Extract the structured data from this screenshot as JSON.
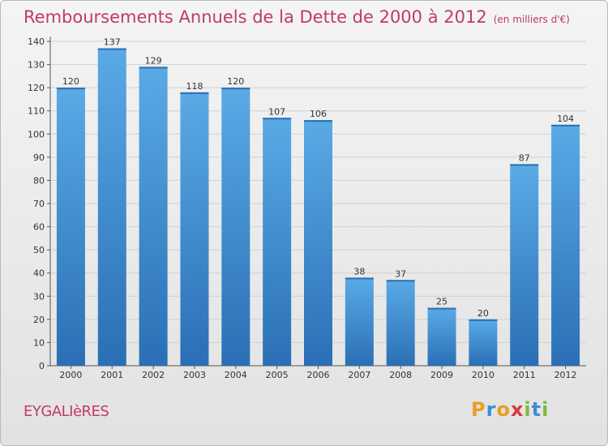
{
  "title": "Remboursements Annuels de la Dette de 2000 à 2012",
  "unit": "(en milliers d'€)",
  "commune": "EYGALIèRES",
  "logo": {
    "letters": [
      "P",
      "r",
      "o",
      "x",
      "i",
      "t",
      "i"
    ],
    "colors": [
      "#e8a020",
      "#3a8fd6",
      "#e8a020",
      "#d83a3a",
      "#7fba3a",
      "#3a8fd6",
      "#7fba3a"
    ]
  },
  "colors": {
    "bar": "#3d8fd8",
    "bar_light": "#5aaae6",
    "bar_dark": "#2a6fb5",
    "text": "#333333",
    "accent": "#c0396b"
  },
  "chart_data": {
    "type": "bar",
    "categories": [
      "2000",
      "2001",
      "2002",
      "2003",
      "2004",
      "2005",
      "2006",
      "2007",
      "2008",
      "2009",
      "2010",
      "2011",
      "2012"
    ],
    "values": [
      120,
      137,
      129,
      118,
      120,
      107,
      106,
      38,
      37,
      25,
      20,
      87,
      104
    ],
    "ylim": [
      0,
      140
    ],
    "yticks": [
      0,
      10,
      20,
      30,
      40,
      50,
      60,
      70,
      80,
      90,
      100,
      110,
      120,
      130,
      140
    ],
    "grid": true,
    "xlabel": "",
    "ylabel": ""
  }
}
